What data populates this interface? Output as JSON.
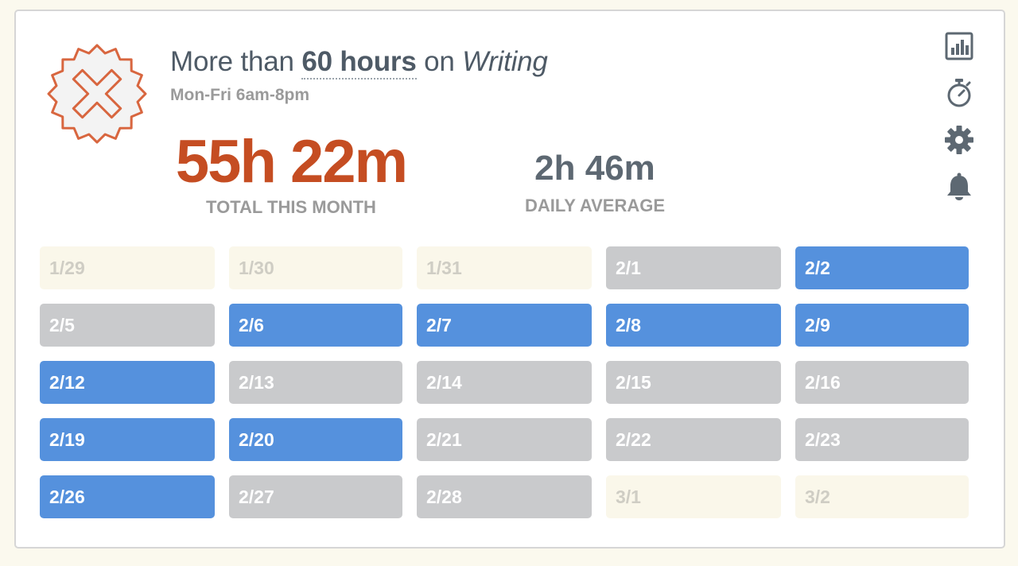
{
  "goal": {
    "prefix": "More than",
    "hours": "60 hours",
    "connector": "on",
    "activity": "Writing",
    "schedule": "Mon-Fri 6am-8pm",
    "status_icon": "failed-x-badge-icon",
    "status_color": "#d8663f"
  },
  "stats": {
    "total_value": "55h 22m",
    "total_label": "TOTAL THIS MONTH",
    "average_value": "2h 46m",
    "average_label": "DAILY AVERAGE"
  },
  "side_icons": [
    "bar-chart-icon",
    "stopwatch-icon",
    "gear-icon",
    "bell-icon"
  ],
  "colors": {
    "met": "#5591dd",
    "missed": "#c9cacc",
    "outside": "#faf7ea",
    "total": "#c54d22"
  },
  "calendar": {
    "days": [
      {
        "label": "1/29",
        "state": "pale"
      },
      {
        "label": "1/30",
        "state": "pale"
      },
      {
        "label": "1/31",
        "state": "pale"
      },
      {
        "label": "2/1",
        "state": "gray"
      },
      {
        "label": "2/2",
        "state": "blue"
      },
      {
        "label": "2/5",
        "state": "gray"
      },
      {
        "label": "2/6",
        "state": "blue"
      },
      {
        "label": "2/7",
        "state": "blue"
      },
      {
        "label": "2/8",
        "state": "blue"
      },
      {
        "label": "2/9",
        "state": "blue"
      },
      {
        "label": "2/12",
        "state": "blue"
      },
      {
        "label": "2/13",
        "state": "gray"
      },
      {
        "label": "2/14",
        "state": "gray"
      },
      {
        "label": "2/15",
        "state": "gray"
      },
      {
        "label": "2/16",
        "state": "gray"
      },
      {
        "label": "2/19",
        "state": "blue"
      },
      {
        "label": "2/20",
        "state": "blue"
      },
      {
        "label": "2/21",
        "state": "gray"
      },
      {
        "label": "2/22",
        "state": "gray"
      },
      {
        "label": "2/23",
        "state": "gray"
      },
      {
        "label": "2/26",
        "state": "blue"
      },
      {
        "label": "2/27",
        "state": "gray"
      },
      {
        "label": "2/28",
        "state": "gray"
      },
      {
        "label": "3/1",
        "state": "pale"
      },
      {
        "label": "3/2",
        "state": "pale"
      }
    ]
  }
}
